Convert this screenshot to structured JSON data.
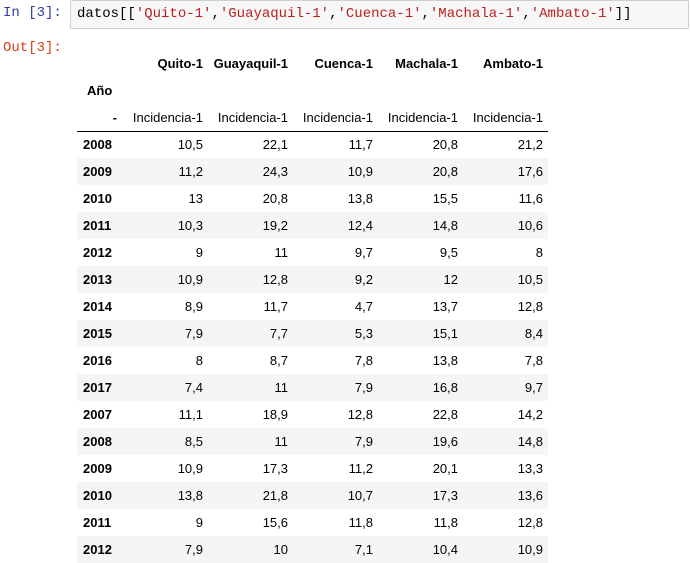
{
  "input_prompt": "In [3]:",
  "output_prompt": "Out[3]:",
  "code": {
    "name": "datos",
    "open": "[[",
    "strings": [
      "'Quito-1'",
      "'Guayaquil-1'",
      "'Cuenca-1'",
      "'Machala-1'",
      "'Ambato-1'"
    ],
    "separator": ",",
    "close": "]]"
  },
  "table": {
    "columns": [
      "Quito-1",
      "Guayaquil-1",
      "Cuenca-1",
      "Machala-1",
      "Ambato-1"
    ],
    "index_name": "Año",
    "subheader_index": "-",
    "subheader": [
      "Incidencia-1",
      "Incidencia-1",
      "Incidencia-1",
      "Incidencia-1",
      "Incidencia-1"
    ],
    "rows": [
      {
        "year": "2008",
        "values": [
          "10,5",
          "22,1",
          "11,7",
          "20,8",
          "21,2"
        ]
      },
      {
        "year": "2009",
        "values": [
          "11,2",
          "24,3",
          "10,9",
          "20,8",
          "17,6"
        ]
      },
      {
        "year": "2010",
        "values": [
          "13",
          "20,8",
          "13,8",
          "15,5",
          "11,6"
        ]
      },
      {
        "year": "2011",
        "values": [
          "10,3",
          "19,2",
          "12,4",
          "14,8",
          "10,6"
        ]
      },
      {
        "year": "2012",
        "values": [
          "9",
          "11",
          "9,7",
          "9,5",
          "8"
        ]
      },
      {
        "year": "2013",
        "values": [
          "10,9",
          "12,8",
          "9,2",
          "12",
          "10,5"
        ]
      },
      {
        "year": "2014",
        "values": [
          "8,9",
          "11,7",
          "4,7",
          "13,7",
          "12,8"
        ]
      },
      {
        "year": "2015",
        "values": [
          "7,9",
          "7,7",
          "5,3",
          "15,1",
          "8,4"
        ]
      },
      {
        "year": "2016",
        "values": [
          "8",
          "8,7",
          "7,8",
          "13,8",
          "7,8"
        ]
      },
      {
        "year": "2017",
        "values": [
          "7,4",
          "11",
          "7,9",
          "16,8",
          "9,7"
        ]
      },
      {
        "year": "2007",
        "values": [
          "11,1",
          "18,9",
          "12,8",
          "22,8",
          "14,2"
        ]
      },
      {
        "year": "2008",
        "values": [
          "8,5",
          "11",
          "7,9",
          "19,6",
          "14,8"
        ]
      },
      {
        "year": "2009",
        "values": [
          "10,9",
          "17,3",
          "11,2",
          "20,1",
          "13,3"
        ]
      },
      {
        "year": "2010",
        "values": [
          "13,8",
          "21,8",
          "10,7",
          "17,3",
          "13,6"
        ]
      },
      {
        "year": "2011",
        "values": [
          "9",
          "15,6",
          "11,8",
          "11,8",
          "12,8"
        ]
      },
      {
        "year": "2012",
        "values": [
          "7,9",
          "10",
          "7,1",
          "10,4",
          "10,9"
        ]
      }
    ]
  }
}
